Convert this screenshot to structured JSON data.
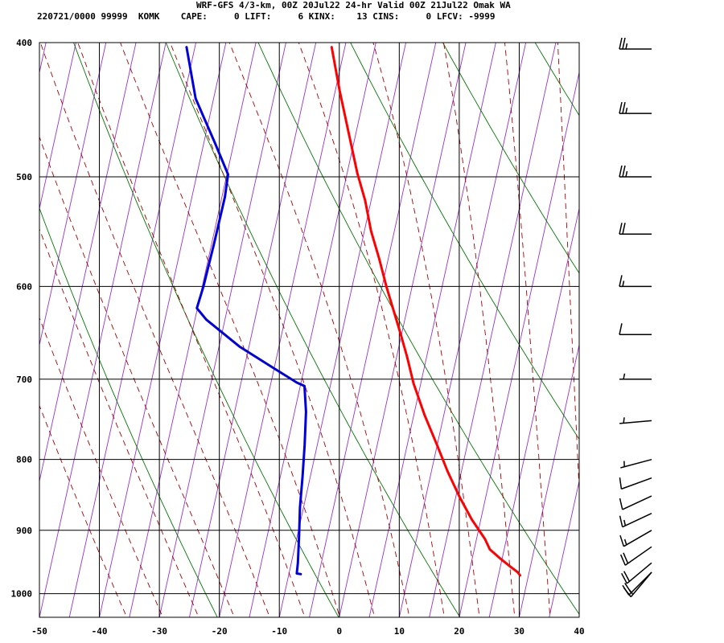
{
  "header": {
    "line1": "WRF-GFS 4/3-km, 00Z 20Jul22 24-hr Valid 00Z 21Jul22 Omak WA",
    "line2": "220721/0000 99999  KOMK    CAPE:     0 LIFT:     6 KINX:    13 CINS:     0 LFCV: -9999"
  },
  "chart_data": {
    "type": "line",
    "subtype": "skew-T log-p sounding",
    "xlim": [
      -50,
      40
    ],
    "ylim": [
      1040,
      400
    ],
    "y_scale": "log",
    "x_ticks": [
      -50,
      -40,
      -30,
      -20,
      -10,
      0,
      10,
      20,
      30,
      40
    ],
    "x_tick_labels": [
      "-50",
      "-40",
      "-30",
      "-20",
      "-10",
      "0",
      "10",
      "20",
      "30",
      "40"
    ],
    "y_ticks": [
      400,
      500,
      600,
      700,
      800,
      900,
      1000
    ],
    "y_tick_labels": [
      "400",
      "500",
      "600",
      "700",
      "800",
      "900",
      "1000"
    ],
    "grid": true,
    "series": [
      {
        "color": "#ff0000",
        "points": [
          [
            -22.2,
            403
          ],
          [
            -19.3,
            433
          ],
          [
            -16.2,
            465
          ],
          [
            -13.3,
            497
          ],
          [
            -11,
            520
          ],
          [
            -8.9,
            547
          ],
          [
            -6.5,
            573
          ],
          [
            -4.3,
            600
          ],
          [
            -2.5,
            621
          ],
          [
            -0.2,
            649
          ],
          [
            1.7,
            674
          ],
          [
            3.8,
            705
          ],
          [
            6.8,
            743
          ],
          [
            9.9,
            780
          ],
          [
            12.7,
            816
          ],
          [
            15.6,
            851
          ],
          [
            18.5,
            884
          ],
          [
            21.4,
            913
          ],
          [
            22.6,
            929
          ],
          [
            24.5,
            942
          ],
          [
            26.5,
            955
          ],
          [
            28.1,
            965
          ],
          [
            28.6,
            970
          ]
        ]
      },
      {
        "color": "#0000dd",
        "points": [
          [
            -46.4,
            403
          ],
          [
            -43,
            439
          ],
          [
            -38.1,
            473
          ],
          [
            -34.8,
            498
          ],
          [
            -34.5,
            517
          ],
          [
            -34.6,
            560
          ],
          [
            -34.8,
            600
          ],
          [
            -35.1,
            622
          ],
          [
            -33.1,
            634
          ],
          [
            -26.6,
            663
          ],
          [
            -20.7,
            685
          ],
          [
            -15.7,
            704
          ],
          [
            -14.3,
            708
          ],
          [
            -13.1,
            739
          ],
          [
            -12.1,
            781
          ],
          [
            -11.3,
            823
          ],
          [
            -10.6,
            866
          ],
          [
            -9.7,
            908
          ],
          [
            -8.9,
            950
          ],
          [
            -8.7,
            967
          ],
          [
            -8.0,
            968
          ]
        ]
      }
    ],
    "reference_lines": [
      "isotherms",
      "dry adiabats",
      "moist adiabats",
      "mixing ratio"
    ],
    "wind_barbs": [
      {
        "p": 400,
        "dir": 270,
        "spd": 25
      },
      {
        "p": 450,
        "dir": 270,
        "spd": 25
      },
      {
        "p": 500,
        "dir": 270,
        "spd": 25
      },
      {
        "p": 550,
        "dir": 270,
        "spd": 20
      },
      {
        "p": 600,
        "dir": 270,
        "spd": 15
      },
      {
        "p": 650,
        "dir": 270,
        "spd": 10
      },
      {
        "p": 700,
        "dir": 270,
        "spd": 5
      },
      {
        "p": 750,
        "dir": 265,
        "spd": 5
      },
      {
        "p": 800,
        "dir": 255,
        "spd": 5
      },
      {
        "p": 825,
        "dir": 250,
        "spd": 10
      },
      {
        "p": 850,
        "dir": 245,
        "spd": 10
      },
      {
        "p": 875,
        "dir": 245,
        "spd": 15
      },
      {
        "p": 900,
        "dir": 240,
        "spd": 15
      },
      {
        "p": 925,
        "dir": 235,
        "spd": 20
      },
      {
        "p": 950,
        "dir": 230,
        "spd": 20
      },
      {
        "p": 975,
        "dir": 225,
        "spd": 20
      },
      {
        "p": 1000,
        "dir": 220,
        "spd": 15
      }
    ]
  }
}
